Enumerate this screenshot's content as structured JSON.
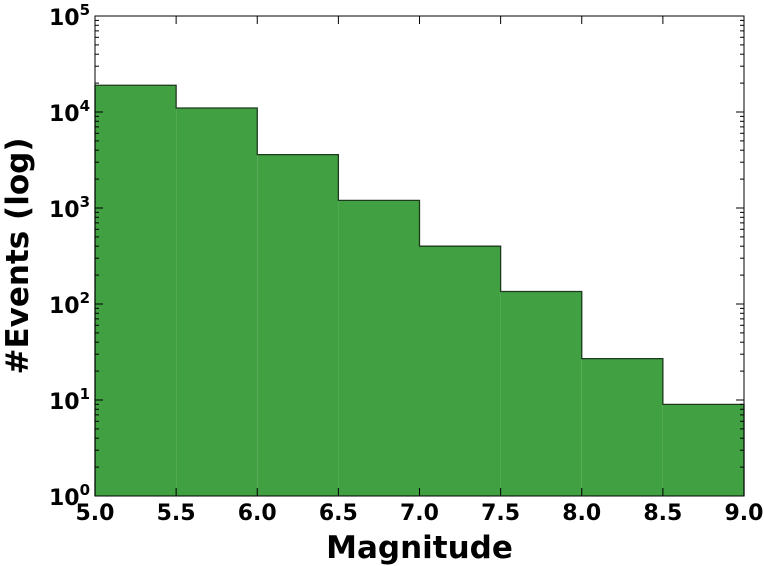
{
  "chart_data": {
    "type": "bar",
    "title": "",
    "xlabel": "Magnitude",
    "ylabel": "#Events (log)",
    "yscale": "log",
    "xlim": [
      5.0,
      9.0
    ],
    "ylim": [
      1,
      100000
    ],
    "bin_edges": [
      5.0,
      5.5,
      6.0,
      6.5,
      7.0,
      7.5,
      8.0,
      8.5,
      9.0
    ],
    "values": [
      19000,
      11000,
      3600,
      1200,
      400,
      135,
      27,
      9
    ],
    "x_ticks": [
      "5.0",
      "5.5",
      "6.0",
      "6.5",
      "7.0",
      "7.5",
      "8.0",
      "8.5",
      "9.0"
    ],
    "y_ticks": [
      {
        "base": "10",
        "exp": "0",
        "value": 1
      },
      {
        "base": "10",
        "exp": "1",
        "value": 10
      },
      {
        "base": "10",
        "exp": "2",
        "value": 100
      },
      {
        "base": "10",
        "exp": "3",
        "value": 1000
      },
      {
        "base": "10",
        "exp": "4",
        "value": 10000
      },
      {
        "base": "10",
        "exp": "5",
        "value": 100000
      }
    ],
    "fill_color": "#41a042",
    "edge_color": "#1e3a1e",
    "grid": false
  }
}
